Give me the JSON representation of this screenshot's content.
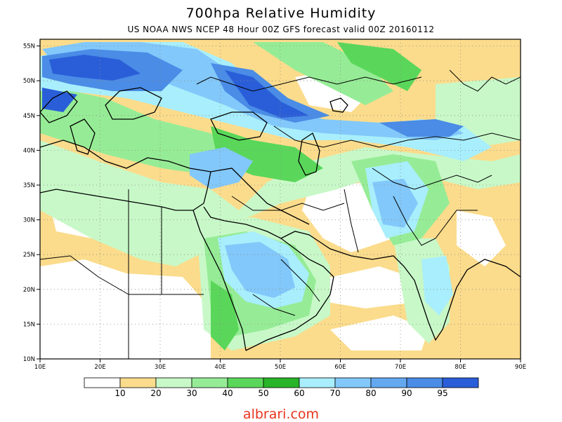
{
  "title": "700hpa Relative Humidity",
  "subtitle": "US NOAA NWS NCEP 48 Hour 00Z GFS forecast valid 00Z 20160112",
  "watermark": "albrari.com",
  "map": {
    "lon_range": [
      10,
      90
    ],
    "lat_range": [
      10,
      56
    ],
    "lon_ticks": [
      "10E",
      "20E",
      "30E",
      "40E",
      "50E",
      "60E",
      "70E",
      "80E",
      "90E"
    ],
    "lat_ticks": [
      "10N",
      "15N",
      "20N",
      "25N",
      "30N",
      "35N",
      "40N",
      "45N",
      "50N",
      "55N"
    ]
  },
  "legend": {
    "colors": [
      "#ffffff",
      "#fbdc8c",
      "#c8f8c8",
      "#96ec96",
      "#5ad75a",
      "#28b428",
      "#a8eefc",
      "#82c8fa",
      "#64a8f0",
      "#4a8ce6",
      "#2a5ed8"
    ],
    "labels": [
      "10",
      "20",
      "30",
      "40",
      "50",
      "60",
      "70",
      "80",
      "90",
      "95"
    ]
  }
}
